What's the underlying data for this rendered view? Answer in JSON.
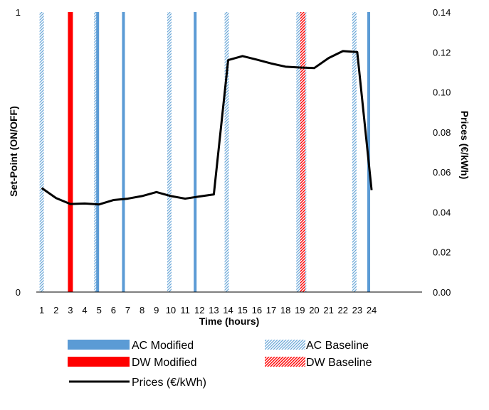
{
  "chart_data": {
    "type": "bar+line",
    "xlabel": "Time (hours)",
    "ylabel_left": "Set-Point  (ON/OFF)",
    "ylabel_right": "Prices (€/kWh)",
    "x_ticks": [
      "1",
      "2",
      "3",
      "4",
      "5",
      "6",
      "7",
      "8",
      "9",
      "10",
      "11",
      "12",
      "13",
      "14",
      "15",
      "16",
      "17",
      "18",
      "19",
      "20",
      "21",
      "22",
      "23",
      "24"
    ],
    "y_left_ticks": [
      "0",
      "1"
    ],
    "y_left_range": [
      0,
      1
    ],
    "y_right_ticks": [
      "0.00",
      "0.02",
      "0.04",
      "0.06",
      "0.08",
      "0.10",
      "0.12",
      "0.14"
    ],
    "y_right_range": [
      0,
      0.14
    ],
    "legend": {
      "ac_modified": "AC Modified",
      "ac_baseline": "AC Baseline",
      "dw_modified": "DW Modified",
      "dw_baseline": "DW Baseline",
      "prices": "Prices (€/kWh)"
    },
    "series": [
      {
        "name": "AC Modified",
        "kind": "bar",
        "x": [
          4.9,
          6.7,
          11.7,
          23.8
        ],
        "values": [
          1,
          1,
          1,
          1
        ]
      },
      {
        "name": "AC Baseline",
        "kind": "bar",
        "x": [
          1.0,
          4.8,
          9.9,
          13.9,
          18.9,
          19.3,
          22.8
        ],
        "values": [
          1,
          1,
          1,
          1,
          1,
          1,
          1
        ]
      },
      {
        "name": "DW Modified",
        "kind": "bar",
        "x": [
          3.0
        ],
        "values": [
          1
        ]
      },
      {
        "name": "DW Baseline",
        "kind": "bar",
        "x": [
          19.2
        ],
        "values": [
          1
        ]
      },
      {
        "name": "Prices (€/kWh)",
        "kind": "line",
        "x": [
          1,
          2,
          3,
          4,
          5,
          6,
          7,
          8,
          9,
          10,
          11,
          12,
          13,
          14,
          15,
          16,
          17,
          18,
          19,
          20,
          21,
          22,
          23,
          24
        ],
        "values": [
          0.052,
          0.047,
          0.044,
          0.0443,
          0.0438,
          0.046,
          0.0467,
          0.048,
          0.05,
          0.048,
          0.0467,
          0.0478,
          0.0488,
          0.116,
          0.118,
          0.1162,
          0.1143,
          0.1127,
          0.1123,
          0.112,
          0.117,
          0.1205,
          0.12,
          0.051
        ]
      }
    ]
  }
}
